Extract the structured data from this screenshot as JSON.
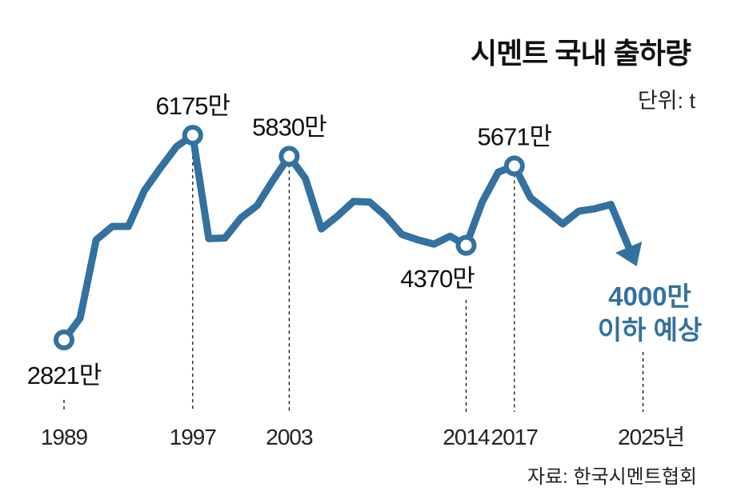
{
  "chart_data": {
    "type": "line",
    "title": "시멘트 국내 출하량",
    "unit_label": "단위: t",
    "source": "자료: 한국시멘트협회",
    "color": "#3371a0",
    "x": [
      1989,
      1990,
      1991,
      1992,
      1993,
      1994,
      1995,
      1996,
      1997,
      1998,
      1999,
      2000,
      2001,
      2002,
      2003,
      2004,
      2005,
      2006,
      2007,
      2008,
      2009,
      2010,
      2011,
      2012,
      2013,
      2014,
      2015,
      2016,
      2017,
      2018,
      2019,
      2020,
      2021,
      2022,
      2023
    ],
    "values": [
      2821,
      3175,
      4460,
      4680,
      4680,
      5270,
      5640,
      5990,
      6175,
      4480,
      4490,
      4820,
      5020,
      5440,
      5830,
      5470,
      4640,
      4850,
      5090,
      5080,
      4850,
      4550,
      4460,
      4390,
      4520,
      4370,
      5080,
      5570,
      5671,
      5150,
      4940,
      4720,
      4930,
      4970,
      5040
    ],
    "value_unit": "만 t",
    "forecast": {
      "x": 2025,
      "value": 4000,
      "label_line1": "4000만",
      "label_line2": "이하 예상"
    },
    "annotations": [
      {
        "x": 1989,
        "label": "2821만",
        "position": "below"
      },
      {
        "x": 1997,
        "label": "6175만",
        "position": "above"
      },
      {
        "x": 2003,
        "label": "5830만",
        "position": "above"
      },
      {
        "x": 2014,
        "label": "4370만",
        "position": "below"
      },
      {
        "x": 2017,
        "label": "5671만",
        "position": "above"
      }
    ],
    "x_tick_labels": [
      {
        "x": 1989,
        "label": "1989"
      },
      {
        "x": 1997,
        "label": "1997"
      },
      {
        "x": 2003,
        "label": "2003"
      },
      {
        "x": 2014,
        "label": "2014"
      },
      {
        "x": 2017,
        "label": "2017"
      },
      {
        "x": 2025,
        "label": "2025년"
      }
    ],
    "ylim": [
      2000,
      7000
    ],
    "grid": false
  }
}
